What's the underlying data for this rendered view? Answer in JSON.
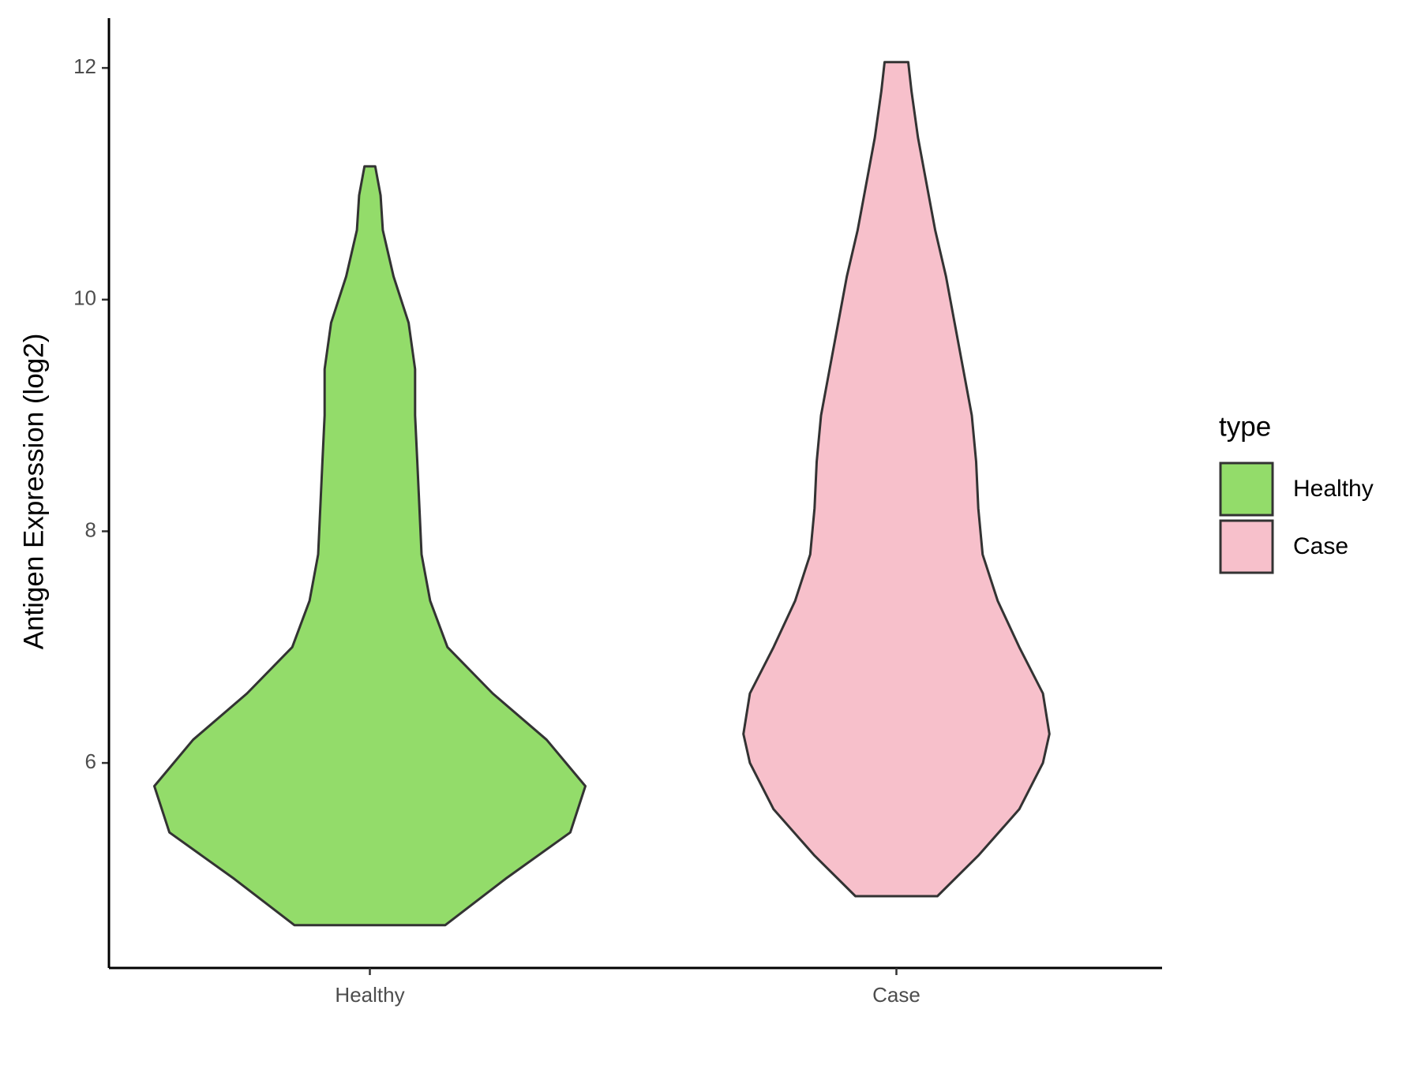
{
  "chart_data": {
    "type": "violin",
    "y_label": "Antigen Expression (log2)",
    "ylim": [
      4.23,
      12.43
    ],
    "yticks": [
      6,
      8,
      10,
      12
    ],
    "categories": [
      "Healthy",
      "Case"
    ],
    "legend_title": "type",
    "series": [
      {
        "name": "Healthy",
        "color": "#93dc6a",
        "y": [
          4.6,
          5.0,
          5.4,
          5.8,
          6.2,
          6.6,
          7.0,
          7.4,
          7.8,
          8.2,
          8.6,
          9.0,
          9.4,
          9.8,
          10.2,
          10.6,
          10.9,
          11.15
        ],
        "width": [
          0.35,
          0.63,
          0.93,
          1.0,
          0.82,
          0.57,
          0.36,
          0.28,
          0.24,
          0.23,
          0.22,
          0.21,
          0.21,
          0.18,
          0.11,
          0.06,
          0.05,
          0.025
        ]
      },
      {
        "name": "Case",
        "color": "#f7c0cb",
        "y": [
          4.85,
          5.2,
          5.6,
          6.0,
          6.25,
          6.6,
          7.0,
          7.4,
          7.8,
          8.2,
          8.6,
          9.0,
          9.4,
          9.8,
          10.2,
          10.6,
          11.0,
          11.4,
          11.8,
          12.05
        ],
        "width": [
          0.19,
          0.38,
          0.57,
          0.68,
          0.71,
          0.68,
          0.57,
          0.47,
          0.4,
          0.38,
          0.37,
          0.35,
          0.31,
          0.27,
          0.23,
          0.18,
          0.14,
          0.1,
          0.07,
          0.055
        ]
      }
    ]
  }
}
